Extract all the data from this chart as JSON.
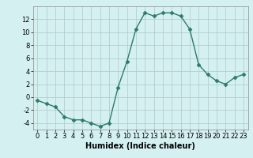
{
  "x": [
    0,
    1,
    2,
    3,
    4,
    5,
    6,
    7,
    8,
    9,
    10,
    11,
    12,
    13,
    14,
    15,
    16,
    17,
    18,
    19,
    20,
    21,
    22,
    23
  ],
  "y": [
    -0.5,
    -1.0,
    -1.5,
    -3.0,
    -3.5,
    -3.5,
    -4.0,
    -4.5,
    -4.0,
    1.5,
    5.5,
    10.5,
    13.0,
    12.5,
    13.0,
    13.0,
    12.5,
    10.5,
    5.0,
    3.5,
    2.5,
    2.0,
    3.0,
    3.5
  ],
  "line_color": "#2d7a6e",
  "marker": "D",
  "marker_size": 2.5,
  "bg_color": "#d4f0f0",
  "grid_color": "#b0c8c8",
  "xlabel": "Humidex (Indice chaleur)",
  "ylim": [
    -5,
    14
  ],
  "xlim": [
    -0.5,
    23.5
  ],
  "yticks": [
    -4,
    -2,
    0,
    2,
    4,
    6,
    8,
    10,
    12
  ],
  "xticks": [
    0,
    1,
    2,
    3,
    4,
    5,
    6,
    7,
    8,
    9,
    10,
    11,
    12,
    13,
    14,
    15,
    16,
    17,
    18,
    19,
    20,
    21,
    22,
    23
  ],
  "xlabel_fontsize": 7,
  "tick_fontsize": 6,
  "line_width": 1.0
}
